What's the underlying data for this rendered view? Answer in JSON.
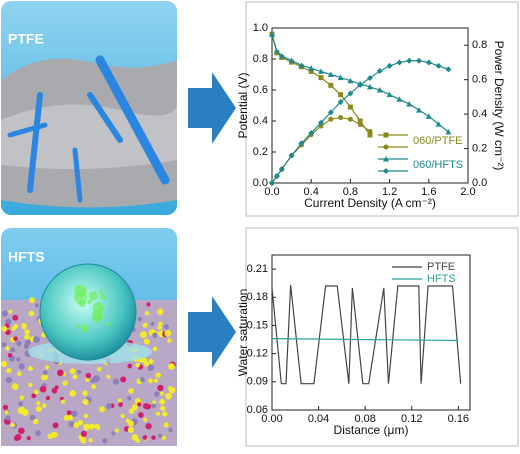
{
  "panels": [
    {
      "label": "PTFE"
    },
    {
      "label": "HFTS"
    }
  ],
  "chart_data": [
    {
      "type": "line",
      "xlabel": "Current Density (A cm⁻²)",
      "ylabel": "Potential (V)",
      "y2label": "Power Density (W cm⁻²)",
      "xlim": [
        0,
        2
      ],
      "xticks": [
        {
          "value": 0,
          "label": "0.0"
        },
        0.4,
        0.8,
        1.2,
        1.6,
        {
          "value": 2,
          "label": "2.0"
        }
      ],
      "ylim": [
        0,
        1
      ],
      "yticks": [
        {
          "value": 0,
          "label": "0.0"
        },
        0.2,
        0.4,
        0.6,
        0.8,
        {
          "value": 1,
          "label": "1.0"
        }
      ],
      "y2lim": [
        0,
        0.9
      ],
      "y2ticks": [
        {
          "value": 0,
          "label": "0.0"
        },
        0.2,
        0.4,
        0.6,
        0.8
      ],
      "legend": "lower-right",
      "series": [
        {
          "name": "060/PTFE",
          "color": "#8c8a1e",
          "marker": "square",
          "x": [
            0,
            0.05,
            0.1,
            0.2,
            0.3,
            0.4,
            0.5,
            0.6,
            0.7,
            0.8,
            0.9,
            1.0
          ],
          "values": [
            0.96,
            0.84,
            0.81,
            0.78,
            0.75,
            0.72,
            0.68,
            0.63,
            0.57,
            0.49,
            0.4,
            0.31
          ]
        },
        {
          "color": "#8c8a1e",
          "marker": "circle",
          "axis": "y2",
          "x": [
            0,
            0.05,
            0.1,
            0.2,
            0.3,
            0.4,
            0.5,
            0.6,
            0.7,
            0.8,
            0.9,
            1.0
          ],
          "values": [
            0,
            0.04,
            0.08,
            0.16,
            0.22,
            0.28,
            0.33,
            0.37,
            0.38,
            0.37,
            0.34,
            0.3
          ]
        },
        {
          "name": "060/HFTS",
          "color": "#1e8a8a",
          "marker": "triangle",
          "x": [
            0,
            0.05,
            0.1,
            0.2,
            0.3,
            0.4,
            0.5,
            0.6,
            0.7,
            0.8,
            0.9,
            1.0,
            1.1,
            1.2,
            1.3,
            1.4,
            1.5,
            1.6,
            1.7,
            1.8
          ],
          "values": [
            0.96,
            0.85,
            0.82,
            0.79,
            0.76,
            0.74,
            0.72,
            0.7,
            0.68,
            0.66,
            0.64,
            0.62,
            0.6,
            0.57,
            0.54,
            0.51,
            0.47,
            0.43,
            0.38,
            0.33
          ]
        },
        {
          "color": "#1e8a8a",
          "marker": "diamond",
          "axis": "y2",
          "x": [
            0,
            0.05,
            0.1,
            0.2,
            0.3,
            0.4,
            0.5,
            0.6,
            0.7,
            0.8,
            0.9,
            1.0,
            1.1,
            1.2,
            1.3,
            1.4,
            1.5,
            1.6,
            1.7,
            1.8
          ],
          "values": [
            0,
            0.04,
            0.08,
            0.16,
            0.23,
            0.29,
            0.35,
            0.41,
            0.47,
            0.52,
            0.57,
            0.61,
            0.65,
            0.68,
            0.7,
            0.71,
            0.71,
            0.7,
            0.68,
            0.66
          ]
        }
      ]
    },
    {
      "type": "line",
      "xlabel": "Distance (μm)",
      "ylabel": "Water saturation",
      "xlim": [
        0,
        0.17
      ],
      "xticks": [
        {
          "value": 0,
          "label": "0.00"
        },
        0.04,
        0.08,
        0.12,
        0.16
      ],
      "ylim": [
        0.06,
        0.225
      ],
      "yticks": [
        0.06,
        0.09,
        0.12,
        0.15,
        0.18,
        0.21
      ],
      "legend": "upper-right",
      "series": [
        {
          "name": "PTFE",
          "color": "#444444",
          "x": [
            0,
            0.008,
            0.012,
            0.016,
            0.025,
            0.036,
            0.046,
            0.056,
            0.066,
            0.069,
            0.078,
            0.083,
            0.096,
            0.1,
            0.108,
            0.126,
            0.128,
            0.134,
            0.145,
            0.155,
            0.162
          ],
          "values": [
            0.19,
            0.088,
            0.088,
            0.193,
            0.088,
            0.088,
            0.192,
            0.192,
            0.088,
            0.19,
            0.088,
            0.088,
            0.19,
            0.088,
            0.192,
            0.192,
            0.088,
            0.192,
            0.192,
            0.192,
            0.088
          ]
        },
        {
          "name": "HFTS",
          "color": "#2aa59a",
          "x": [
            0,
            0.16
          ],
          "values": [
            0.136,
            0.134
          ]
        }
      ]
    }
  ]
}
